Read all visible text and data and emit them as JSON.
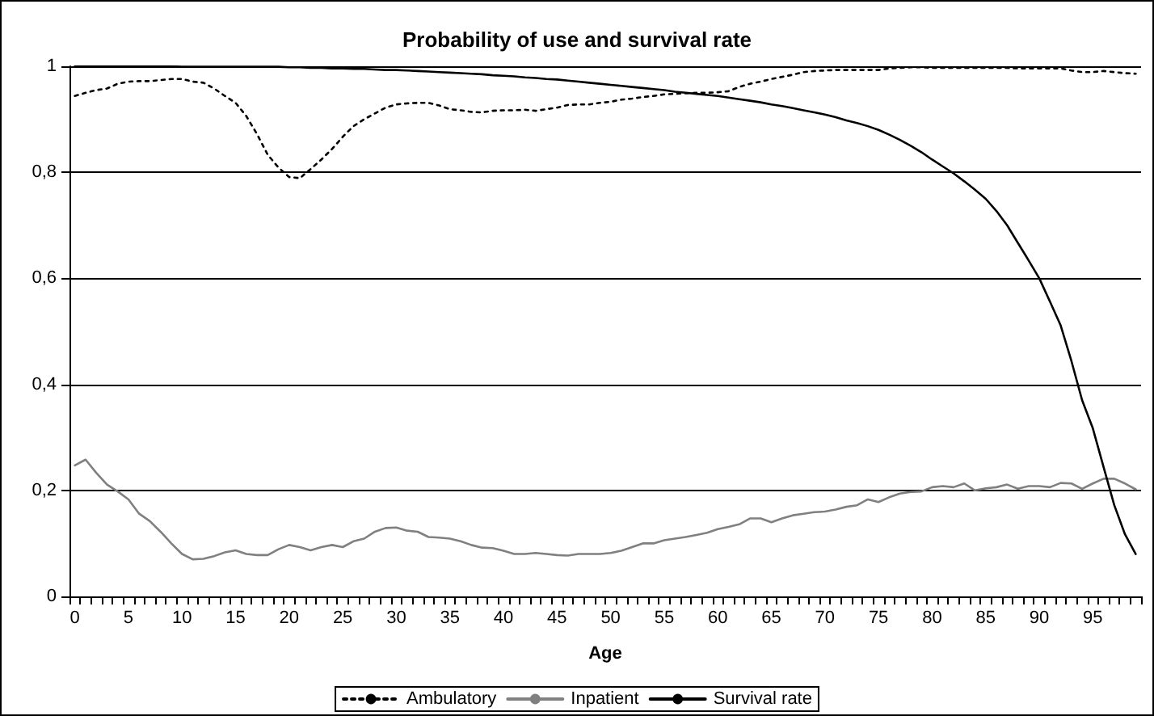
{
  "chart_data": {
    "type": "line",
    "title": "Probability of use and survival rate",
    "xlabel": "Age",
    "categories": [
      "0",
      null,
      null,
      null,
      null,
      "5",
      null,
      null,
      null,
      null,
      "10",
      null,
      null,
      null,
      null,
      "15",
      null,
      null,
      null,
      null,
      "20",
      null,
      null,
      null,
      null,
      "25",
      null,
      null,
      null,
      null,
      "30",
      null,
      null,
      null,
      null,
      "35",
      null,
      null,
      null,
      null,
      "40",
      null,
      null,
      null,
      null,
      "45",
      null,
      null,
      null,
      null,
      "50",
      null,
      null,
      null,
      null,
      "55",
      null,
      null,
      null,
      null,
      "60",
      null,
      null,
      null,
      null,
      "65",
      null,
      null,
      null,
      null,
      "70",
      null,
      null,
      null,
      null,
      "75",
      null,
      null,
      null,
      null,
      "80",
      null,
      null,
      null,
      null,
      "85",
      null,
      null,
      null,
      null,
      "90",
      null,
      null,
      null,
      null,
      "95",
      null,
      null,
      null,
      null
    ],
    "series": [
      {
        "name": "Ambulatory",
        "color": "#000000",
        "line_style": "dotted",
        "values": [
          0.944,
          0.95,
          0.955,
          0.958,
          0.967,
          0.971,
          0.972,
          0.972,
          0.974,
          0.976,
          0.976,
          0.971,
          0.969,
          0.958,
          0.944,
          0.931,
          0.906,
          0.872,
          0.833,
          0.809,
          0.791,
          0.789,
          0.806,
          0.824,
          0.844,
          0.867,
          0.887,
          0.9,
          0.911,
          0.922,
          0.928,
          0.93,
          0.931,
          0.931,
          0.926,
          0.919,
          0.917,
          0.914,
          0.913,
          0.916,
          0.917,
          0.917,
          0.918,
          0.916,
          0.919,
          0.922,
          0.927,
          0.928,
          0.928,
          0.931,
          0.933,
          0.937,
          0.939,
          0.942,
          0.944,
          0.947,
          0.948,
          0.949,
          0.95,
          0.95,
          0.951,
          0.953,
          0.961,
          0.967,
          0.971,
          0.976,
          0.98,
          0.984,
          0.989,
          0.991,
          0.992,
          0.993,
          0.993,
          0.993,
          0.993,
          0.993,
          0.996,
          0.997,
          0.998,
          0.998,
          0.997,
          0.997,
          0.997,
          0.997,
          0.997,
          0.997,
          0.997,
          0.997,
          0.996,
          0.996,
          0.996,
          0.996,
          0.996,
          0.992,
          0.989,
          0.989,
          0.991,
          0.989,
          0.987,
          0.986
        ]
      },
      {
        "name": "Inpatient",
        "color": "#808080",
        "line_style": "solid",
        "values": [
          0.247,
          0.258,
          0.233,
          0.211,
          0.198,
          0.183,
          0.156,
          0.142,
          0.122,
          0.1,
          0.08,
          0.07,
          0.071,
          0.076,
          0.083,
          0.087,
          0.08,
          0.078,
          0.078,
          0.089,
          0.097,
          0.093,
          0.087,
          0.093,
          0.097,
          0.093,
          0.104,
          0.109,
          0.122,
          0.129,
          0.13,
          0.124,
          0.122,
          0.112,
          0.111,
          0.109,
          0.104,
          0.097,
          0.092,
          0.091,
          0.086,
          0.08,
          0.08,
          0.082,
          0.08,
          0.078,
          0.077,
          0.08,
          0.08,
          0.08,
          0.082,
          0.086,
          0.093,
          0.1,
          0.1,
          0.106,
          0.109,
          0.112,
          0.116,
          0.12,
          0.127,
          0.131,
          0.136,
          0.147,
          0.147,
          0.14,
          0.147,
          0.153,
          0.156,
          0.159,
          0.16,
          0.164,
          0.169,
          0.172,
          0.183,
          0.178,
          0.187,
          0.194,
          0.197,
          0.198,
          0.206,
          0.208,
          0.206,
          0.213,
          0.2,
          0.204,
          0.206,
          0.211,
          0.203,
          0.208,
          0.208,
          0.206,
          0.214,
          0.213,
          0.203,
          0.213,
          0.222,
          0.222,
          0.213,
          0.202
        ]
      },
      {
        "name": "Survival rate",
        "color": "#000000",
        "line_style": "solid",
        "values": [
          1,
          1,
          1,
          1,
          1,
          1,
          1,
          1,
          1,
          1,
          0.999,
          0.999,
          0.999,
          0.999,
          0.999,
          0.999,
          0.999,
          0.999,
          0.999,
          0.999,
          0.998,
          0.998,
          0.997,
          0.997,
          0.996,
          0.996,
          0.995,
          0.995,
          0.994,
          0.993,
          0.993,
          0.992,
          0.991,
          0.99,
          0.989,
          0.988,
          0.987,
          0.986,
          0.985,
          0.983,
          0.982,
          0.981,
          0.979,
          0.978,
          0.976,
          0.975,
          0.973,
          0.971,
          0.969,
          0.967,
          0.965,
          0.963,
          0.961,
          0.959,
          0.957,
          0.955,
          0.952,
          0.95,
          0.948,
          0.946,
          0.944,
          0.941,
          0.938,
          0.935,
          0.932,
          0.928,
          0.925,
          0.921,
          0.917,
          0.913,
          0.909,
          0.904,
          0.898,
          0.893,
          0.887,
          0.88,
          0.871,
          0.861,
          0.85,
          0.838,
          0.824,
          0.811,
          0.798,
          0.783,
          0.767,
          0.75,
          0.727,
          0.7,
          0.667,
          0.634,
          0.6,
          0.556,
          0.511,
          0.444,
          0.37,
          0.317,
          0.244,
          0.172,
          0.117,
          0.08
        ]
      }
    ],
    "ylim": [
      0,
      1
    ],
    "yticks": [
      0,
      {
        "value": 0.2,
        "label": "0,2"
      },
      {
        "value": 0.4,
        "label": "0,4"
      },
      {
        "value": 0.6,
        "label": "0,6"
      },
      {
        "value": 0.8,
        "label": "0,8"
      },
      1
    ],
    "grid": "y",
    "legend": "bottom",
    "marker": "none"
  }
}
